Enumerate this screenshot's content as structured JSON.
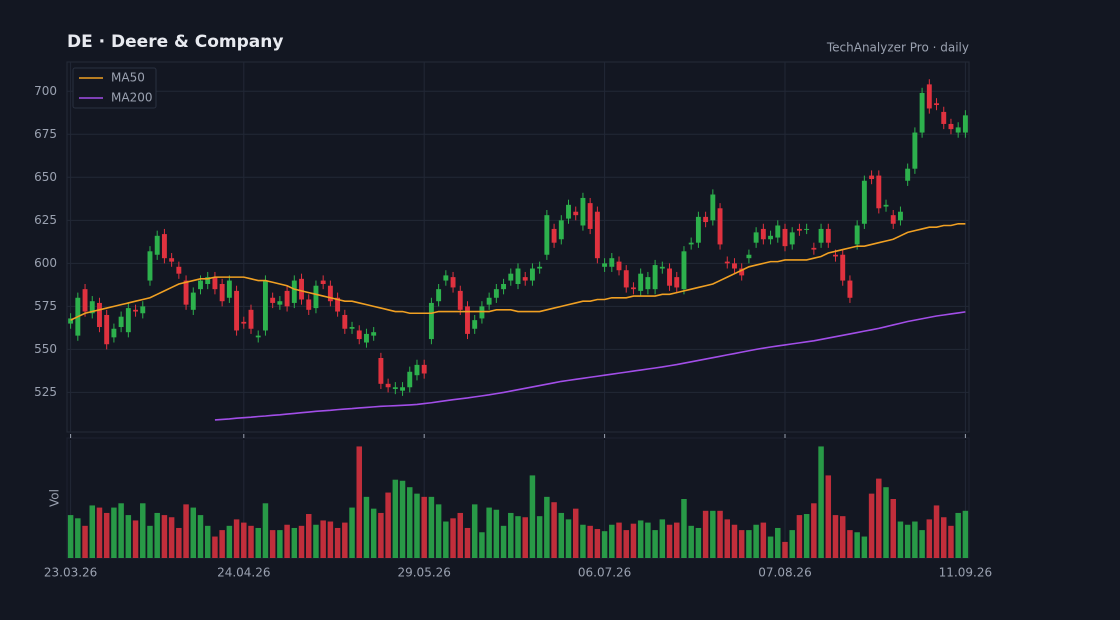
{
  "chart_data": {
    "type": "candlestick",
    "title": "DE  ·  Deere & Company",
    "subtitle": "TechAnalyzer Pro · daily",
    "volume_label": "Vol",
    "up_color": "#2db14d",
    "down_color": "#e0323f",
    "grid": true,
    "legend": "upper left",
    "ylim": [
      502,
      717
    ],
    "yticks": [
      525,
      550,
      575,
      600,
      625,
      650,
      675,
      700
    ],
    "volume_ylim": [
      0,
      110
    ],
    "categories": [
      "23.03.26",
      null,
      null,
      null,
      null,
      null,
      null,
      null,
      null,
      null,
      null,
      null,
      null,
      null,
      null,
      null,
      null,
      null,
      null,
      null,
      null,
      null,
      null,
      null,
      "24.04.26",
      null,
      null,
      null,
      null,
      null,
      null,
      null,
      null,
      null,
      null,
      null,
      null,
      null,
      null,
      null,
      null,
      null,
      null,
      null,
      null,
      null,
      null,
      null,
      null,
      "29.05.26",
      null,
      null,
      null,
      null,
      null,
      null,
      null,
      null,
      null,
      null,
      null,
      null,
      null,
      null,
      null,
      null,
      null,
      null,
      null,
      null,
      null,
      null,
      null,
      null,
      "06.07.26",
      null,
      null,
      null,
      null,
      null,
      null,
      null,
      null,
      null,
      null,
      null,
      null,
      null,
      null,
      null,
      null,
      null,
      null,
      null,
      null,
      null,
      null,
      null,
      null,
      "07.08.26",
      null,
      null,
      null,
      null,
      null,
      null,
      null,
      null,
      null,
      null,
      null,
      null,
      null,
      null,
      null,
      null,
      null,
      null,
      null,
      null,
      null,
      null,
      null,
      null,
      "11.09.26"
    ],
    "open": [
      565,
      558,
      585,
      571,
      577,
      570,
      557,
      563,
      560,
      573,
      571,
      590,
      605,
      617,
      603,
      598,
      590,
      573,
      585,
      588,
      592,
      588,
      580,
      584,
      566,
      573,
      557,
      561,
      580,
      576,
      584,
      577,
      591,
      579,
      574,
      590,
      587,
      580,
      570,
      562,
      561,
      554,
      558,
      545,
      530,
      527,
      526,
      528,
      535,
      541,
      556,
      578,
      590,
      592,
      584,
      575,
      562,
      568,
      576,
      580,
      585,
      590,
      588,
      592,
      590,
      597,
      605,
      620,
      614,
      626,
      630,
      622,
      635,
      630,
      598,
      598,
      601,
      596,
      586,
      584,
      585,
      585,
      597,
      597,
      592,
      585,
      611,
      612,
      627,
      625,
      632,
      601,
      600,
      597,
      603,
      612,
      620,
      614,
      615,
      620,
      611,
      620,
      620,
      609,
      612,
      620,
      605,
      605,
      590,
      611,
      623,
      651,
      651,
      633,
      628,
      625,
      648,
      655,
      676,
      704,
      693,
      688,
      681,
      676,
      676
    ],
    "high": [
      571,
      583,
      588,
      581,
      580,
      573,
      565,
      572,
      577,
      576,
      578,
      610,
      619,
      620,
      606,
      601,
      593,
      586,
      593,
      595,
      595,
      591,
      593,
      587,
      569,
      576,
      561,
      593,
      583,
      581,
      587,
      593,
      594,
      582,
      590,
      593,
      590,
      583,
      573,
      566,
      564,
      562,
      563,
      548,
      533,
      531,
      531,
      540,
      544,
      544,
      580,
      588,
      596,
      595,
      587,
      578,
      570,
      578,
      583,
      588,
      591,
      597,
      600,
      595,
      600,
      601,
      631,
      623,
      628,
      637,
      633,
      641,
      638,
      633,
      603,
      606,
      604,
      599,
      589,
      597,
      595,
      602,
      601,
      600,
      595,
      610,
      615,
      630,
      630,
      643,
      635,
      604,
      603,
      600,
      608,
      621,
      623,
      619,
      625,
      623,
      621,
      623,
      623,
      612,
      623,
      623,
      608,
      608,
      593,
      625,
      651,
      654,
      654,
      637,
      631,
      633,
      658,
      679,
      702,
      707,
      696,
      691,
      684,
      682,
      689
    ],
    "low": [
      562,
      555,
      569,
      568,
      560,
      550,
      554,
      560,
      557,
      569,
      568,
      587,
      602,
      600,
      598,
      591,
      573,
      570,
      582,
      585,
      582,
      575,
      577,
      558,
      562,
      559,
      554,
      558,
      574,
      573,
      572,
      574,
      576,
      570,
      571,
      585,
      575,
      569,
      559,
      559,
      553,
      551,
      555,
      527,
      525,
      524,
      523,
      525,
      532,
      533,
      553,
      575,
      587,
      583,
      570,
      556,
      559,
      565,
      573,
      577,
      582,
      587,
      585,
      587,
      587,
      594,
      602,
      609,
      611,
      623,
      625,
      619,
      617,
      600,
      595,
      595,
      593,
      583,
      582,
      581,
      582,
      582,
      594,
      584,
      583,
      582,
      608,
      609,
      621,
      622,
      608,
      597,
      594,
      590,
      600,
      609,
      611,
      611,
      612,
      607,
      608,
      616,
      617,
      605,
      609,
      609,
      601,
      587,
      577,
      608,
      620,
      646,
      629,
      630,
      620,
      622,
      645,
      652,
      673,
      687,
      689,
      678,
      675,
      673,
      673
    ],
    "close": [
      568,
      580,
      572,
      578,
      563,
      553,
      562,
      569,
      574,
      572,
      575,
      607,
      616,
      603,
      601,
      594,
      576,
      583,
      590,
      592,
      585,
      578,
      590,
      561,
      565,
      562,
      558,
      590,
      577,
      578,
      575,
      590,
      579,
      573,
      587,
      588,
      578,
      572,
      562,
      563,
      556,
      559,
      560,
      530,
      528,
      528,
      528,
      537,
      541,
      536,
      577,
      585,
      593,
      586,
      573,
      559,
      567,
      575,
      580,
      585,
      588,
      594,
      597,
      590,
      597,
      598,
      628,
      612,
      625,
      634,
      628,
      638,
      620,
      603,
      600,
      603,
      596,
      586,
      585,
      594,
      592,
      599,
      598,
      587,
      586,
      607,
      612,
      627,
      624,
      640,
      611,
      600,
      597,
      593,
      605,
      618,
      614,
      616,
      622,
      610,
      618,
      619,
      620,
      608,
      620,
      612,
      604,
      590,
      580,
      622,
      648,
      649,
      632,
      634,
      623,
      630,
      655,
      676,
      699,
      690,
      692,
      681,
      678,
      679,
      686
    ],
    "volume": [
      40,
      37,
      30,
      49,
      47,
      42,
      47,
      51,
      40,
      35,
      51,
      30,
      42,
      40,
      38,
      28,
      50,
      47,
      40,
      30,
      20,
      26,
      30,
      36,
      33,
      30,
      28,
      51,
      26,
      26,
      31,
      28,
      30,
      41,
      31,
      35,
      34,
      28,
      33,
      47,
      104,
      57,
      46,
      42,
      61,
      73,
      72,
      66,
      60,
      57,
      57,
      50,
      34,
      37,
      42,
      28,
      50,
      24,
      47,
      45,
      30,
      42,
      39,
      38,
      77,
      39,
      57,
      52,
      42,
      36,
      46,
      31,
      30,
      27,
      25,
      31,
      33,
      26,
      32,
      35,
      33,
      26,
      36,
      31,
      33,
      55,
      30,
      28,
      44,
      44,
      44,
      36,
      31,
      26,
      26,
      31,
      33,
      20,
      28,
      15,
      26,
      40,
      41,
      51,
      104,
      77,
      40,
      39,
      26,
      24,
      20,
      60,
      74,
      66,
      55,
      34,
      31,
      34,
      26,
      36,
      49,
      38,
      30,
      42,
      44
    ],
    "series": [
      {
        "name": "MA50",
        "color": "#f0a023",
        "values": [
          567,
          569,
          571,
          572,
          573,
          574,
          575,
          576,
          577,
          578,
          579,
          580,
          582,
          584,
          586,
          588,
          589,
          590,
          591,
          591,
          592,
          592,
          592,
          592,
          592,
          591,
          590,
          590,
          589,
          588,
          587,
          585,
          584,
          583,
          582,
          581,
          580,
          579,
          578,
          578,
          577,
          576,
          575,
          574,
          573,
          572,
          572,
          571,
          571,
          571,
          571,
          572,
          572,
          572,
          572,
          572,
          572,
          572,
          572,
          573,
          573,
          573,
          572,
          572,
          572,
          572,
          573,
          574,
          575,
          576,
          577,
          578,
          578,
          579,
          579,
          580,
          580,
          580,
          581,
          581,
          581,
          581,
          582,
          582,
          583,
          584,
          585,
          586,
          587,
          588,
          590,
          592,
          594,
          596,
          598,
          599,
          600,
          601,
          601,
          602,
          602,
          602,
          602,
          603,
          604,
          606,
          607,
          608,
          609,
          610,
          610,
          611,
          612,
          613,
          614,
          616,
          618,
          619,
          620,
          621,
          621,
          622,
          622,
          623,
          623
        ]
      },
      {
        "name": "MA200",
        "color": "#a24ee8",
        "values": [
          null,
          null,
          null,
          null,
          null,
          null,
          null,
          null,
          null,
          null,
          null,
          null,
          null,
          null,
          null,
          null,
          null,
          null,
          null,
          null,
          509,
          509.3,
          509.6,
          510,
          510.3,
          510.6,
          511,
          511.3,
          511.7,
          512,
          512.4,
          512.8,
          513.2,
          513.6,
          514,
          514.3,
          514.6,
          515,
          515.3,
          515.6,
          516,
          516.3,
          516.6,
          516.9,
          517.1,
          517.3,
          517.5,
          517.7,
          518,
          518.5,
          519,
          519.6,
          520.2,
          520.8,
          521.3,
          521.8,
          522.4,
          523,
          523.6,
          524.3,
          525,
          525.8,
          526.6,
          527.4,
          528.2,
          529,
          529.8,
          530.6,
          531.4,
          532,
          532.6,
          533.2,
          533.8,
          534.4,
          535,
          535.6,
          536.2,
          536.8,
          537.4,
          538,
          538.6,
          539.2,
          539.8,
          540.5,
          541.2,
          542,
          542.8,
          543.6,
          544.4,
          545.2,
          546,
          546.8,
          547.6,
          548.4,
          549.2,
          550,
          550.7,
          551.4,
          552,
          552.6,
          553.2,
          553.8,
          554.4,
          555,
          555.8,
          556.6,
          557.4,
          558.2,
          559,
          559.8,
          560.6,
          561.4,
          562.2,
          563.2,
          564.2,
          565.2,
          566.2,
          567,
          567.8,
          568.6,
          569.4,
          570,
          570.6,
          571.2,
          571.8
        ]
      }
    ]
  }
}
